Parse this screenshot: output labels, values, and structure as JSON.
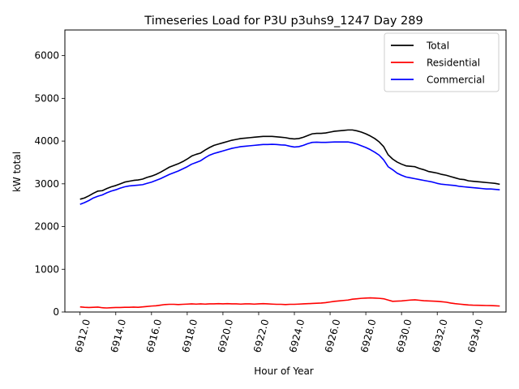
{
  "chart_data": {
    "type": "line",
    "title": "Timeseries Load for P3U p3uhs9_1247  Day 289",
    "xlabel": "Hour of Year",
    "ylabel": "kW total",
    "xlim": [
      6911.15,
      6935.85
    ],
    "ylim": [
      0,
      6600
    ],
    "xticks": [
      6912,
      6914,
      6916,
      6918,
      6920,
      6922,
      6924,
      6926,
      6928,
      6930,
      6932,
      6934
    ],
    "xtick_labels": [
      "6912.0",
      "6914.0",
      "6916.0",
      "6918.0",
      "6920.0",
      "6922.0",
      "6924.0",
      "6926.0",
      "6928.0",
      "6930.0",
      "6932.0",
      "6934.0"
    ],
    "yticks": [
      0,
      1000,
      2000,
      3000,
      4000,
      5000,
      6000
    ],
    "ytick_labels": [
      "0",
      "1000",
      "2000",
      "3000",
      "4000",
      "5000",
      "6000"
    ],
    "grid": false,
    "legend_position": "top-right",
    "x": [
      6912,
      6912.25,
      6912.5,
      6912.75,
      6913,
      6913.25,
      6913.5,
      6913.75,
      6914,
      6914.25,
      6914.5,
      6914.75,
      6915,
      6915.25,
      6915.5,
      6915.75,
      6916,
      6916.25,
      6916.5,
      6916.75,
      6917,
      6917.25,
      6917.5,
      6917.75,
      6918,
      6918.25,
      6918.5,
      6918.75,
      6919,
      6919.25,
      6919.5,
      6919.75,
      6920,
      6920.25,
      6920.5,
      6920.75,
      6921,
      6921.25,
      6921.5,
      6921.75,
      6922,
      6922.25,
      6922.5,
      6922.75,
      6923,
      6923.25,
      6923.5,
      6923.75,
      6924,
      6924.25,
      6924.5,
      6924.75,
      6925,
      6925.25,
      6925.5,
      6925.75,
      6926,
      6926.25,
      6926.5,
      6926.75,
      6927,
      6927.25,
      6927.5,
      6927.75,
      6928,
      6928.25,
      6928.5,
      6928.75,
      6929,
      6929.25,
      6929.5,
      6929.75,
      6930,
      6930.25,
      6930.5,
      6930.75,
      6931,
      6931.25,
      6931.5,
      6931.75,
      6932,
      6932.25,
      6932.5,
      6932.75,
      6933,
      6933.25,
      6933.5,
      6933.75,
      6934,
      6934.25,
      6934.5,
      6934.75,
      6935,
      6935.25,
      6935.5
    ],
    "series": [
      {
        "name": "Total",
        "color": "#000000",
        "values": [
          2640,
          2670,
          2720,
          2780,
          2830,
          2840,
          2890,
          2930,
          2960,
          3000,
          3040,
          3060,
          3080,
          3090,
          3110,
          3150,
          3180,
          3220,
          3270,
          3330,
          3390,
          3430,
          3470,
          3520,
          3580,
          3650,
          3690,
          3720,
          3790,
          3850,
          3900,
          3930,
          3960,
          3990,
          4020,
          4040,
          4060,
          4070,
          4080,
          4090,
          4100,
          4110,
          4110,
          4110,
          4100,
          4090,
          4080,
          4060,
          4050,
          4060,
          4090,
          4130,
          4170,
          4180,
          4180,
          4190,
          4210,
          4230,
          4240,
          4250,
          4260,
          4260,
          4240,
          4210,
          4170,
          4120,
          4060,
          3980,
          3870,
          3680,
          3580,
          3510,
          3460,
          3420,
          3410,
          3400,
          3360,
          3330,
          3290,
          3270,
          3250,
          3220,
          3200,
          3170,
          3140,
          3110,
          3100,
          3070,
          3060,
          3050,
          3040,
          3030,
          3020,
          3010,
          2990
        ]
      },
      {
        "name": "Residential",
        "color": "#ff0000",
        "values": [
          120,
          110,
          105,
          110,
          115,
          100,
          95,
          100,
          105,
          105,
          110,
          110,
          115,
          110,
          120,
          130,
          140,
          145,
          160,
          175,
          180,
          180,
          175,
          180,
          185,
          190,
          185,
          190,
          185,
          190,
          190,
          195,
          190,
          195,
          190,
          190,
          185,
          190,
          190,
          185,
          190,
          195,
          190,
          185,
          180,
          180,
          175,
          180,
          180,
          185,
          190,
          195,
          200,
          205,
          210,
          220,
          235,
          250,
          260,
          270,
          280,
          300,
          310,
          320,
          325,
          330,
          325,
          320,
          310,
          280,
          250,
          255,
          260,
          270,
          280,
          285,
          275,
          265,
          260,
          255,
          250,
          240,
          230,
          210,
          195,
          185,
          175,
          165,
          160,
          158,
          155,
          152,
          150,
          145,
          140
        ]
      },
      {
        "name": "Commercial",
        "color": "#0000ff",
        "values": [
          2520,
          2560,
          2610,
          2670,
          2710,
          2740,
          2790,
          2830,
          2860,
          2900,
          2930,
          2950,
          2960,
          2970,
          2980,
          3010,
          3040,
          3080,
          3120,
          3170,
          3220,
          3260,
          3300,
          3350,
          3400,
          3460,
          3500,
          3540,
          3610,
          3670,
          3710,
          3740,
          3770,
          3800,
          3830,
          3850,
          3870,
          3880,
          3890,
          3900,
          3910,
          3920,
          3920,
          3925,
          3920,
          3910,
          3905,
          3880,
          3860,
          3870,
          3900,
          3940,
          3970,
          3975,
          3970,
          3970,
          3975,
          3980,
          3980,
          3980,
          3980,
          3960,
          3930,
          3890,
          3850,
          3800,
          3740,
          3670,
          3560,
          3400,
          3330,
          3250,
          3200,
          3160,
          3140,
          3120,
          3100,
          3080,
          3060,
          3040,
          3010,
          2990,
          2980,
          2970,
          2960,
          2940,
          2930,
          2920,
          2910,
          2900,
          2890,
          2880,
          2880,
          2870,
          2860
        ]
      }
    ]
  }
}
